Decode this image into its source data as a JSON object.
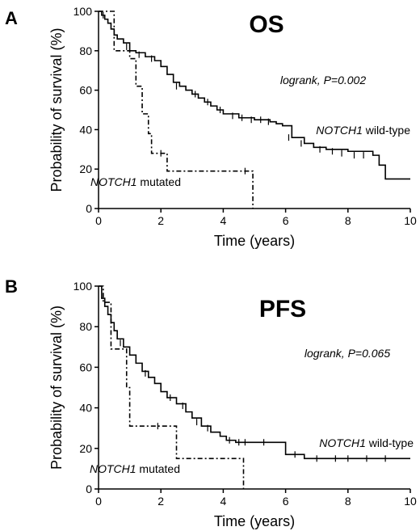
{
  "chart_data": [
    {
      "type": "line",
      "subtype": "kaplan-meier",
      "panel": "A",
      "title": "OS",
      "xlabel": "Time (years)",
      "ylabel": "Probability of survival (%)",
      "xlim": [
        0,
        10
      ],
      "ylim": [
        0,
        100
      ],
      "xticks": [
        0,
        2,
        4,
        6,
        8,
        10
      ],
      "yticks": [
        0,
        20,
        40,
        60,
        80,
        100
      ],
      "annotation": "logrank, P=0.002",
      "series": [
        {
          "name": "NOTCH1 wild-type",
          "label_gene": "NOTCH1",
          "label_rest": " wild-type",
          "style": "solid",
          "x": [
            0,
            0.1,
            0.2,
            0.3,
            0.4,
            0.5,
            0.6,
            0.8,
            1.0,
            1.2,
            1.5,
            1.8,
            2.0,
            2.2,
            2.4,
            2.6,
            2.8,
            3.0,
            3.2,
            3.4,
            3.6,
            3.8,
            4.0,
            4.5,
            5.0,
            5.5,
            5.7,
            5.9,
            6.2,
            6.6,
            6.9,
            7.3,
            8.0,
            8.8,
            9.0,
            9.2,
            10.0
          ],
          "y": [
            100,
            98,
            96,
            94,
            91,
            88,
            86,
            84,
            80,
            79,
            77,
            75,
            72,
            68,
            64,
            62,
            60,
            58,
            56,
            54,
            52,
            50,
            48,
            46,
            45,
            44,
            43,
            42,
            36,
            33,
            31,
            30,
            29,
            27,
            22,
            15,
            15
          ],
          "censor_x": [
            0.15,
            0.9,
            1.3,
            1.7,
            2.5,
            3.1,
            3.5,
            3.9,
            4.3,
            4.6,
            4.9,
            5.2,
            5.45,
            6.1,
            6.5,
            7.1,
            7.5,
            7.8,
            8.2,
            8.5
          ],
          "censor_y": [
            98,
            82,
            78,
            76,
            62,
            58,
            54,
            50,
            47,
            46,
            45,
            45,
            44,
            36,
            33,
            30,
            29,
            28,
            27,
            27
          ]
        },
        {
          "name": "NOTCH1 mutated",
          "label_gene": "NOTCH1",
          "label_rest": " mutated",
          "style": "dashdot",
          "x": [
            0,
            0.5,
            1.0,
            1.2,
            1.4,
            1.6,
            1.7,
            2.1,
            2.2,
            4.9,
            4.95
          ],
          "y": [
            100,
            80,
            76,
            62,
            48,
            38,
            28,
            28,
            19,
            19,
            0
          ],
          "censor_x": [
            2.0,
            4.7
          ],
          "censor_y": [
            28,
            19
          ]
        }
      ]
    },
    {
      "type": "line",
      "subtype": "kaplan-meier",
      "panel": "B",
      "title": "PFS",
      "xlabel": "Time (years)",
      "ylabel": "Probability of survival (%)",
      "xlim": [
        0,
        10
      ],
      "ylim": [
        0,
        100
      ],
      "xticks": [
        0,
        2,
        4,
        6,
        8,
        10
      ],
      "yticks": [
        0,
        20,
        40,
        60,
        80,
        100
      ],
      "annotation": "logrank, P=0.065",
      "series": [
        {
          "name": "NOTCH1 wild-type",
          "label_gene": "NOTCH1",
          "label_rest": " wild-type",
          "style": "solid",
          "x": [
            0,
            0.1,
            0.2,
            0.3,
            0.4,
            0.5,
            0.6,
            0.8,
            1.0,
            1.2,
            1.4,
            1.6,
            1.8,
            2.0,
            2.2,
            2.5,
            2.8,
            3.0,
            3.3,
            3.6,
            3.9,
            4.1,
            4.4,
            5.0,
            6.0,
            6.6,
            10.0
          ],
          "y": [
            100,
            94,
            90,
            86,
            82,
            78,
            74,
            70,
            66,
            62,
            58,
            55,
            52,
            48,
            45,
            42,
            38,
            35,
            31,
            28,
            26,
            24,
            23,
            23,
            17,
            15,
            15
          ],
          "censor_x": [
            0.7,
            1.5,
            2.3,
            2.7,
            3.15,
            3.5,
            4.2,
            4.5,
            4.7,
            5.3,
            6.3,
            7.0,
            7.6,
            8.0,
            8.6,
            9.2
          ],
          "censor_y": [
            72,
            57,
            45,
            41,
            33,
            30,
            24,
            23,
            23,
            23,
            17,
            15,
            15,
            15,
            15,
            15
          ]
        },
        {
          "name": "NOTCH1 mutated",
          "label_gene": "NOTCH1",
          "label_rest": " mutated",
          "style": "dashdot",
          "x": [
            0,
            0.15,
            0.4,
            0.8,
            0.9,
            1.0,
            2.5,
            4.6,
            4.65
          ],
          "y": [
            100,
            92,
            69,
            69,
            50,
            31,
            15,
            15,
            0
          ],
          "censor_x": [
            1.9
          ],
          "censor_y": [
            31
          ]
        }
      ]
    }
  ]
}
